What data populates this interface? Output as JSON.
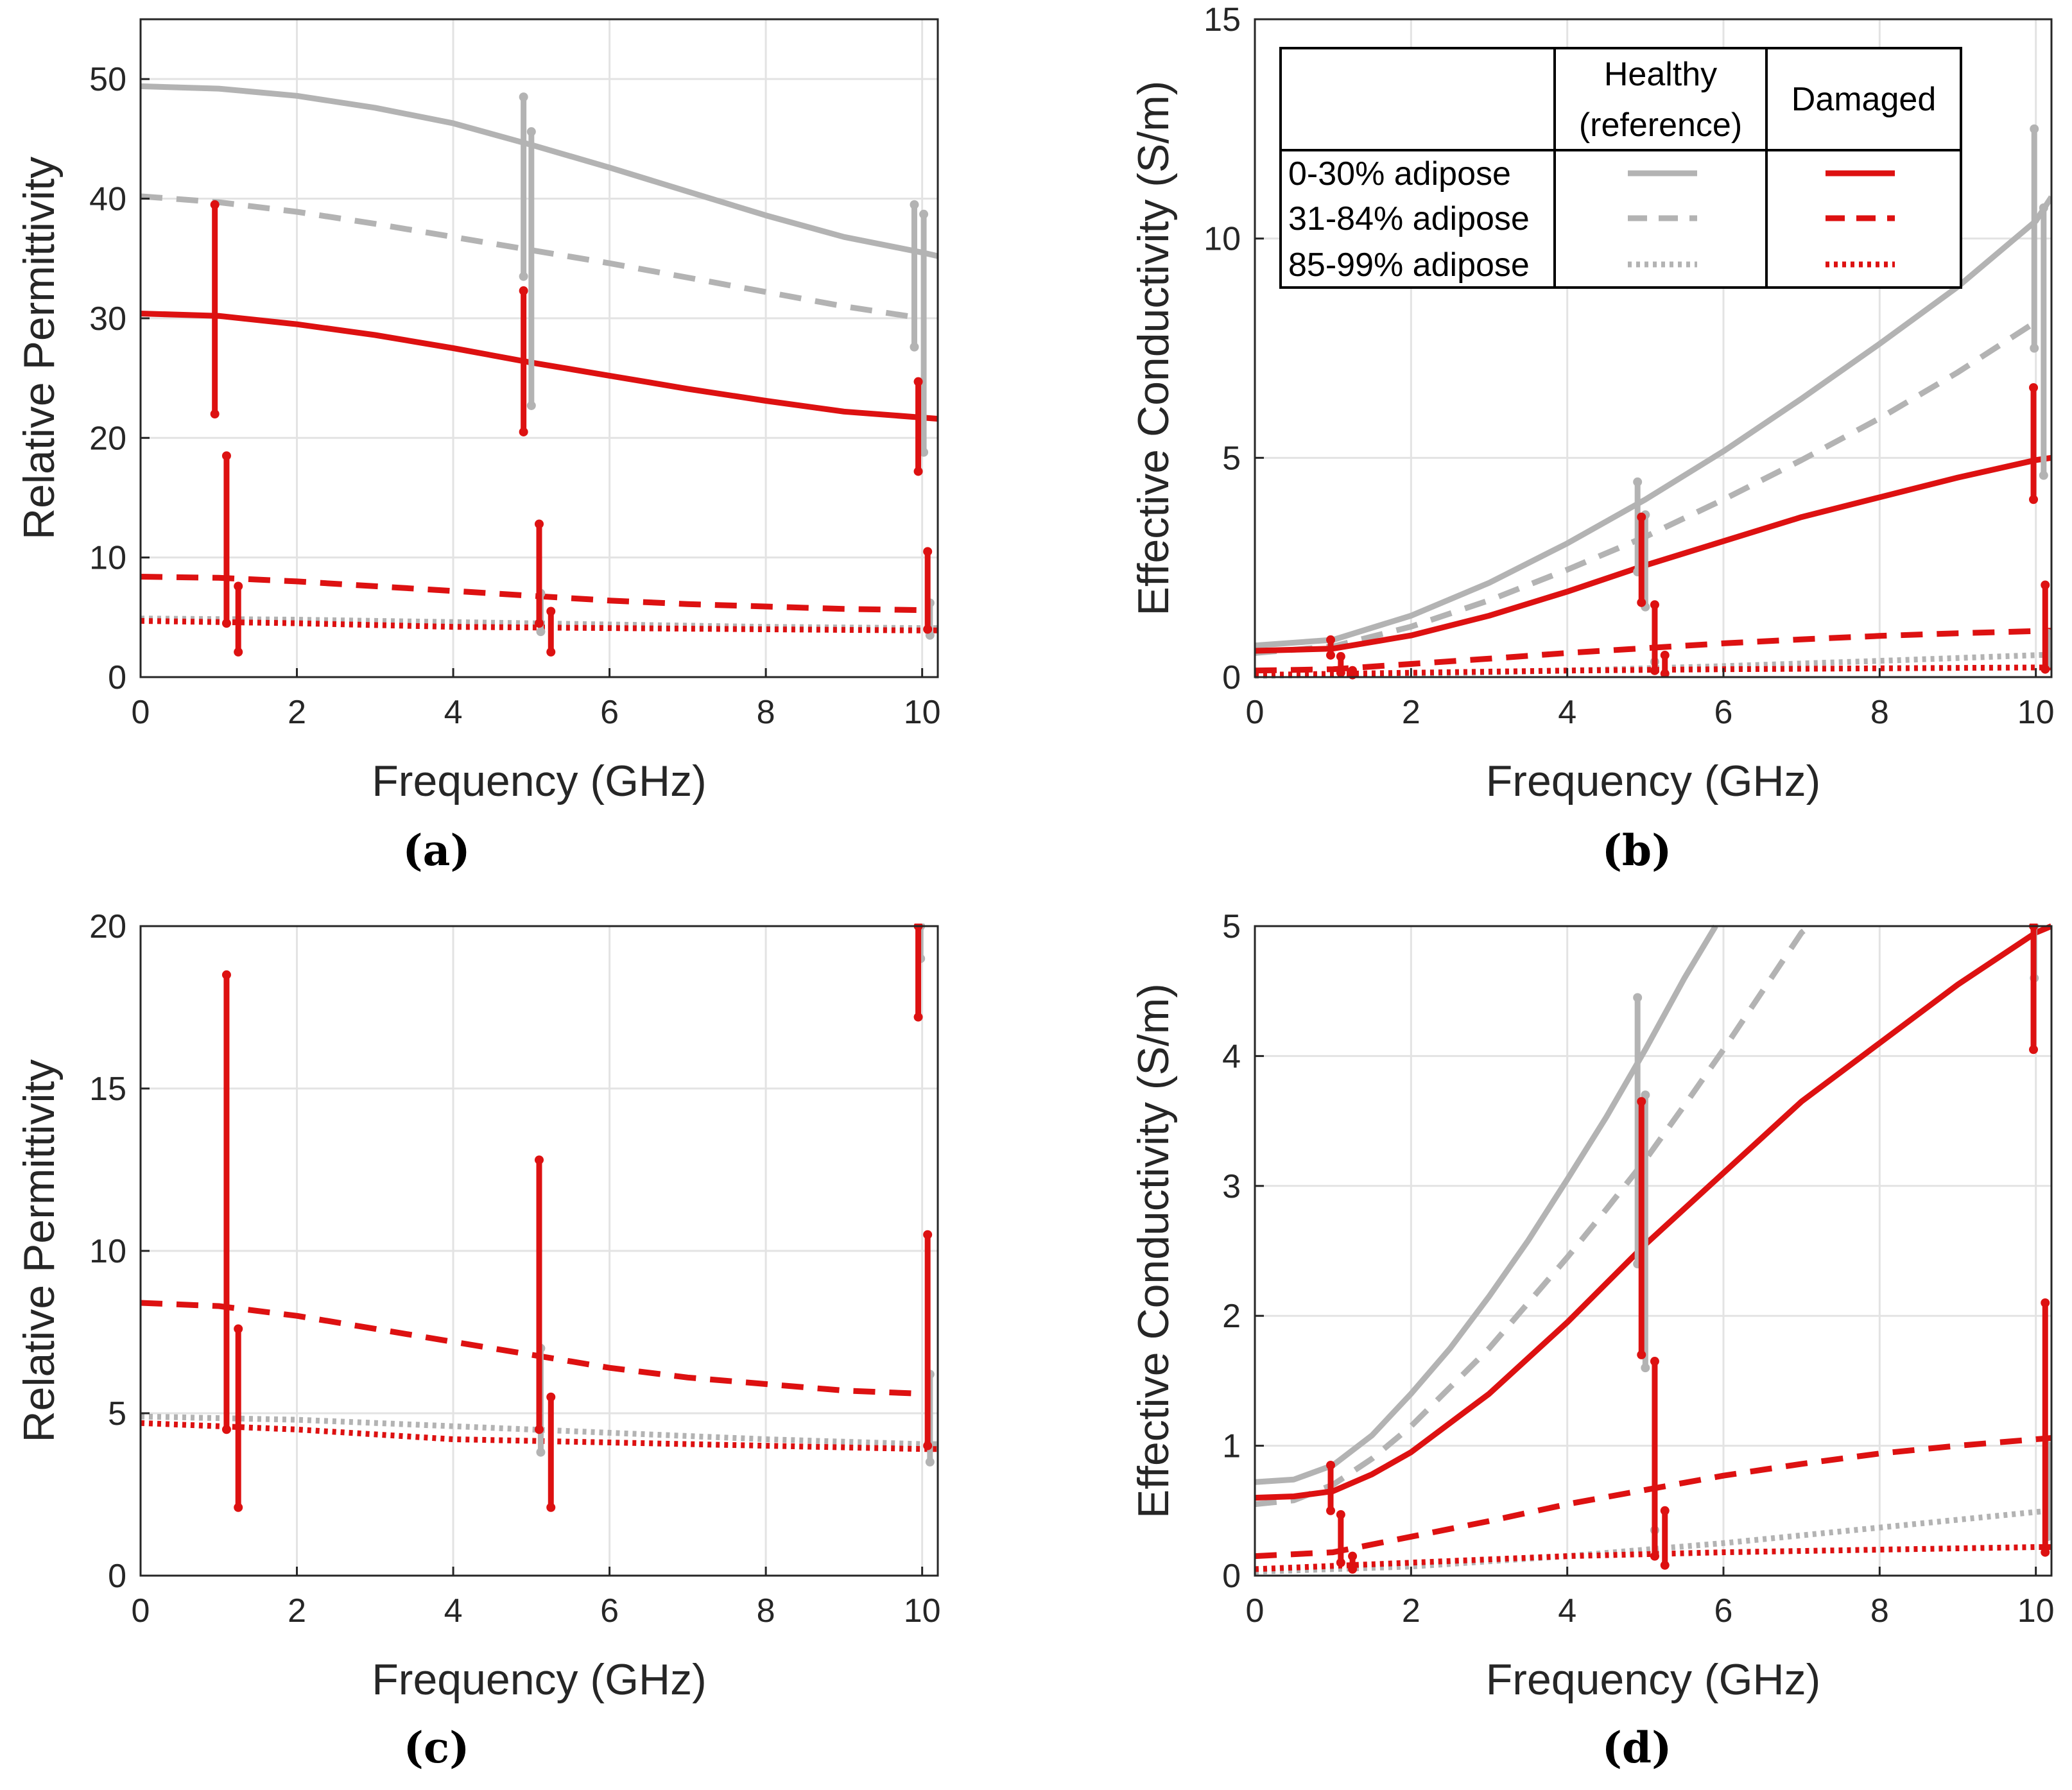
{
  "colors": {
    "healthy": "#b3b3b3",
    "damaged": "#dd1111",
    "grid": "#e3e3e3",
    "axis": "#262626"
  },
  "legend": {
    "col_healthy_line1": "Healthy",
    "col_healthy_line2": "(reference)",
    "col_damaged": "Damaged",
    "rows": [
      "0-30% adipose",
      "31-84% adipose",
      "85-99% adipose"
    ]
  },
  "chart_data": [
    {
      "panel": "a",
      "caption": "(a)",
      "type": "line",
      "xlabel": "Frequency (GHz)",
      "ylabel": "Relative Permittivity",
      "xlim": [
        0,
        10.2
      ],
      "ylim": [
        0,
        55
      ],
      "xticks": [
        0,
        2,
        4,
        6,
        8,
        10
      ],
      "yticks": [
        0,
        10,
        20,
        30,
        40,
        50
      ],
      "grid": true,
      "series": [
        {
          "name": "Healthy 0-30% adipose",
          "group": "healthy",
          "style": "solid",
          "x": [
            0,
            1,
            2,
            3,
            4,
            5,
            6,
            7,
            8,
            9,
            10,
            10.2
          ],
          "y": [
            49.4,
            49.2,
            48.6,
            47.6,
            46.3,
            44.5,
            42.6,
            40.6,
            38.6,
            36.8,
            35.5,
            35.2
          ]
        },
        {
          "name": "Healthy 31-84% adipose",
          "group": "healthy",
          "style": "dashed",
          "x": [
            0,
            1,
            2,
            3,
            4,
            5,
            6,
            7,
            8,
            9,
            10
          ],
          "y": [
            40.2,
            39.7,
            38.9,
            37.9,
            36.8,
            35.7,
            34.6,
            33.4,
            32.2,
            31.0,
            30.0
          ]
        },
        {
          "name": "Healthy 85-99% adipose",
          "group": "healthy",
          "style": "dotted",
          "x": [
            0,
            2,
            4,
            6,
            8,
            10,
            10.2
          ],
          "y": [
            4.9,
            4.8,
            4.6,
            4.4,
            4.2,
            4.1,
            4.1
          ]
        },
        {
          "name": "Damaged 0-30% adipose",
          "group": "damaged",
          "style": "solid",
          "x": [
            0,
            1,
            2,
            3,
            4,
            5,
            6,
            7,
            8,
            9,
            10,
            10.2
          ],
          "y": [
            30.4,
            30.2,
            29.5,
            28.6,
            27.5,
            26.3,
            25.2,
            24.1,
            23.1,
            22.2,
            21.7,
            21.6
          ]
        },
        {
          "name": "Damaged 31-84% adipose",
          "group": "damaged",
          "style": "dashed",
          "x": [
            0,
            1,
            2,
            3,
            4,
            5,
            6,
            7,
            8,
            9,
            10
          ],
          "y": [
            8.4,
            8.3,
            8.0,
            7.6,
            7.2,
            6.8,
            6.4,
            6.1,
            5.9,
            5.7,
            5.6
          ]
        },
        {
          "name": "Damaged 85-99% adipose",
          "group": "damaged",
          "style": "dotted",
          "x": [
            0,
            2,
            4,
            6,
            8,
            10,
            10.2
          ],
          "y": [
            4.7,
            4.5,
            4.2,
            4.1,
            4.0,
            3.9,
            3.9
          ]
        }
      ],
      "errorbars": [
        {
          "group": "healthy",
          "x": 4.9,
          "low": 33.5,
          "high": 48.5
        },
        {
          "group": "healthy",
          "x": 5.0,
          "low": 22.7,
          "high": 45.6
        },
        {
          "group": "healthy",
          "x": 9.9,
          "low": 27.6,
          "high": 39.5
        },
        {
          "group": "healthy",
          "x": 10.02,
          "low": 18.8,
          "high": 38.7
        },
        {
          "group": "healthy",
          "x": 5.12,
          "low": 3.8,
          "high": 7.0
        },
        {
          "group": "healthy",
          "x": 10.1,
          "low": 3.5,
          "high": 6.2
        },
        {
          "group": "damaged",
          "x": 0.95,
          "low": 22.0,
          "high": 39.5
        },
        {
          "group": "damaged",
          "x": 1.1,
          "low": 4.5,
          "high": 18.5
        },
        {
          "group": "damaged",
          "x": 1.25,
          "low": 2.1,
          "high": 7.6
        },
        {
          "group": "damaged",
          "x": 4.9,
          "low": 20.5,
          "high": 32.3
        },
        {
          "group": "damaged",
          "x": 5.1,
          "low": 4.5,
          "high": 12.8
        },
        {
          "group": "damaged",
          "x": 5.25,
          "low": 2.1,
          "high": 5.5
        },
        {
          "group": "damaged",
          "x": 9.95,
          "low": 17.2,
          "high": 24.7
        },
        {
          "group": "damaged",
          "x": 10.07,
          "low": 4.0,
          "high": 10.5
        }
      ]
    },
    {
      "panel": "b",
      "caption": "(b)",
      "type": "line",
      "xlabel": "Frequency (GHz)",
      "ylabel": "Effective Conductivity (S/m)",
      "xlim": [
        0,
        10.2
      ],
      "ylim": [
        0,
        15
      ],
      "xticks": [
        0,
        2,
        4,
        6,
        8,
        10
      ],
      "yticks": [
        0,
        5,
        10,
        15
      ],
      "grid": true,
      "series": [
        {
          "name": "Healthy 0-30% adipose",
          "group": "healthy",
          "style": "solid",
          "x": [
            0,
            1,
            2,
            3,
            4,
            5,
            6,
            7,
            8,
            9,
            10,
            10.2
          ],
          "y": [
            0.72,
            0.85,
            1.4,
            2.15,
            3.05,
            4.05,
            5.15,
            6.35,
            7.6,
            8.9,
            10.4,
            10.95
          ]
        },
        {
          "name": "Healthy 31-84% adipose",
          "group": "healthy",
          "style": "dashed",
          "x": [
            0,
            1,
            2,
            3,
            4,
            5,
            6,
            7,
            8,
            9,
            10
          ],
          "y": [
            0.55,
            0.7,
            1.15,
            1.75,
            2.45,
            3.2,
            4.05,
            4.95,
            5.9,
            6.95,
            8.1
          ]
        },
        {
          "name": "Healthy 85-99% adipose",
          "group": "healthy",
          "style": "dotted",
          "x": [
            0,
            2,
            4,
            6,
            8,
            10,
            10.2
          ],
          "y": [
            0.03,
            0.07,
            0.15,
            0.25,
            0.37,
            0.5,
            0.51
          ]
        },
        {
          "name": "Damaged 0-30% adipose",
          "group": "damaged",
          "style": "solid",
          "x": [
            0,
            1,
            2,
            3,
            4,
            5,
            6,
            7,
            8,
            9,
            10,
            10.2
          ],
          "y": [
            0.6,
            0.65,
            0.95,
            1.4,
            1.95,
            2.55,
            3.1,
            3.65,
            4.1,
            4.55,
            4.95,
            5.0
          ]
        },
        {
          "name": "Damaged 31-84% adipose",
          "group": "damaged",
          "style": "dashed",
          "x": [
            0,
            1,
            2,
            3,
            4,
            5,
            6,
            7,
            8,
            9,
            10,
            10.2
          ],
          "y": [
            0.15,
            0.18,
            0.3,
            0.42,
            0.55,
            0.66,
            0.77,
            0.86,
            0.94,
            1.0,
            1.05,
            1.06
          ]
        },
        {
          "name": "Damaged 85-99% adipose",
          "group": "damaged",
          "style": "dotted",
          "x": [
            0,
            2,
            4,
            6,
            8,
            10,
            10.2
          ],
          "y": [
            0.05,
            0.1,
            0.15,
            0.18,
            0.2,
            0.22,
            0.22
          ]
        }
      ],
      "errorbars": [
        {
          "group": "healthy",
          "x": 4.9,
          "low": 2.4,
          "high": 4.45
        },
        {
          "group": "healthy",
          "x": 5.0,
          "low": 1.6,
          "high": 3.7
        },
        {
          "group": "healthy",
          "x": 9.98,
          "low": 7.5,
          "high": 12.5
        },
        {
          "group": "healthy",
          "x": 10.1,
          "low": 4.6,
          "high": 10.7
        },
        {
          "group": "healthy",
          "x": 5.12,
          "low": 0.15,
          "high": 0.35
        },
        {
          "group": "healthy",
          "x": 10.15,
          "low": 0.3,
          "high": 1.0
        },
        {
          "group": "damaged",
          "x": 0.97,
          "low": 0.5,
          "high": 0.85
        },
        {
          "group": "damaged",
          "x": 1.1,
          "low": 0.1,
          "high": 0.47
        },
        {
          "group": "damaged",
          "x": 1.25,
          "low": 0.05,
          "high": 0.15
        },
        {
          "group": "damaged",
          "x": 4.95,
          "low": 1.7,
          "high": 3.65
        },
        {
          "group": "damaged",
          "x": 5.12,
          "low": 0.15,
          "high": 1.65
        },
        {
          "group": "damaged",
          "x": 5.25,
          "low": 0.08,
          "high": 0.5
        },
        {
          "group": "damaged",
          "x": 9.97,
          "low": 4.05,
          "high": 6.6
        },
        {
          "group": "damaged",
          "x": 10.12,
          "low": 0.18,
          "high": 2.1
        }
      ]
    },
    {
      "panel": "c",
      "caption": "(c)",
      "type": "line",
      "xlabel": "Frequency (GHz)",
      "ylabel": "Relative Permittivity",
      "xlim": [
        0,
        10.2
      ],
      "ylim": [
        0,
        20
      ],
      "xticks": [
        0,
        2,
        4,
        6,
        8,
        10
      ],
      "yticks": [
        0,
        5,
        10,
        15,
        20
      ],
      "grid": true,
      "series": [
        {
          "name": "Healthy 85-99% adipose",
          "group": "healthy",
          "style": "dotted",
          "x": [
            0,
            2,
            4,
            6,
            8,
            10,
            10.2
          ],
          "y": [
            4.9,
            4.8,
            4.6,
            4.4,
            4.2,
            4.05,
            4.05
          ]
        },
        {
          "name": "Damaged 31-84% adipose",
          "group": "damaged",
          "style": "dashed",
          "x": [
            0,
            1,
            2,
            3,
            4,
            5,
            6,
            7,
            8,
            9,
            10
          ],
          "y": [
            8.4,
            8.3,
            8.0,
            7.6,
            7.2,
            6.8,
            6.4,
            6.1,
            5.9,
            5.7,
            5.6
          ]
        },
        {
          "name": "Damaged 85-99% adipose",
          "group": "damaged",
          "style": "dotted",
          "x": [
            0,
            2,
            4,
            6,
            8,
            10,
            10.2
          ],
          "y": [
            4.7,
            4.5,
            4.2,
            4.1,
            4.0,
            3.9,
            3.9
          ]
        }
      ],
      "errorbars": [
        {
          "group": "healthy",
          "x": 9.98,
          "low": 19.0,
          "high": 20.0
        },
        {
          "group": "healthy",
          "x": 5.12,
          "low": 3.8,
          "high": 7.0
        },
        {
          "group": "healthy",
          "x": 10.1,
          "low": 3.5,
          "high": 6.2
        },
        {
          "group": "damaged",
          "x": 9.95,
          "low": 17.2,
          "high": 20.0
        },
        {
          "group": "damaged",
          "x": 1.1,
          "low": 4.5,
          "high": 18.5
        },
        {
          "group": "damaged",
          "x": 1.25,
          "low": 2.1,
          "high": 7.6
        },
        {
          "group": "damaged",
          "x": 5.1,
          "low": 4.5,
          "high": 12.8
        },
        {
          "group": "damaged",
          "x": 5.25,
          "low": 2.1,
          "high": 5.5
        },
        {
          "group": "damaged",
          "x": 10.07,
          "low": 4.0,
          "high": 10.5
        }
      ]
    },
    {
      "panel": "d",
      "caption": "(d)",
      "type": "line",
      "xlabel": "Frequency (GHz)",
      "ylabel": "Effective Conductivity (S/m)",
      "xlim": [
        0,
        10.2
      ],
      "ylim": [
        0,
        5
      ],
      "xticks": [
        0,
        2,
        4,
        6,
        8,
        10
      ],
      "yticks": [
        0,
        1,
        2,
        3,
        4,
        5
      ],
      "grid": true,
      "series": [
        {
          "name": "Healthy 0-30% adipose",
          "group": "healthy",
          "style": "solid",
          "x": [
            0,
            0.5,
            1,
            1.5,
            2,
            2.5,
            3,
            3.5,
            4,
            4.5,
            5,
            5.5,
            5.9
          ],
          "y": [
            0.72,
            0.74,
            0.85,
            1.08,
            1.4,
            1.75,
            2.15,
            2.58,
            3.05,
            3.53,
            4.05,
            4.6,
            5.0
          ]
        },
        {
          "name": "Healthy 31-84% adipose",
          "group": "healthy",
          "style": "dashed",
          "x": [
            0,
            0.5,
            1,
            1.5,
            2,
            2.5,
            3,
            3.5,
            4,
            4.5,
            5,
            5.5,
            6,
            6.5,
            7,
            7.1
          ],
          "y": [
            0.55,
            0.58,
            0.7,
            0.9,
            1.15,
            1.45,
            1.75,
            2.1,
            2.45,
            2.82,
            3.2,
            3.62,
            4.05,
            4.5,
            4.95,
            5.0
          ]
        },
        {
          "name": "Healthy 85-99% adipose",
          "group": "healthy",
          "style": "dotted",
          "x": [
            0,
            2,
            4,
            6,
            8,
            10,
            10.2
          ],
          "y": [
            0.03,
            0.07,
            0.15,
            0.25,
            0.37,
            0.49,
            0.5
          ]
        },
        {
          "name": "Damaged 0-30% adipose",
          "group": "damaged",
          "style": "solid",
          "x": [
            0,
            0.5,
            1,
            1.5,
            2,
            3,
            4,
            5,
            6,
            7,
            8,
            9,
            10,
            10.2
          ],
          "y": [
            0.6,
            0.61,
            0.65,
            0.78,
            0.95,
            1.4,
            1.95,
            2.55,
            3.1,
            3.65,
            4.1,
            4.55,
            4.95,
            5.0
          ]
        },
        {
          "name": "Damaged 31-84% adipose",
          "group": "damaged",
          "style": "dashed",
          "x": [
            0,
            1,
            2,
            3,
            4,
            5,
            6,
            7,
            8,
            9,
            10,
            10.2
          ],
          "y": [
            0.15,
            0.18,
            0.3,
            0.42,
            0.55,
            0.66,
            0.77,
            0.86,
            0.94,
            1.0,
            1.05,
            1.06
          ]
        },
        {
          "name": "Damaged 85-99% adipose",
          "group": "damaged",
          "style": "dotted",
          "x": [
            0,
            2,
            4,
            6,
            8,
            10,
            10.2
          ],
          "y": [
            0.05,
            0.1,
            0.15,
            0.18,
            0.2,
            0.22,
            0.22
          ]
        }
      ],
      "errorbars": [
        {
          "group": "healthy",
          "x": 4.9,
          "low": 2.4,
          "high": 4.45
        },
        {
          "group": "healthy",
          "x": 5.0,
          "low": 1.6,
          "high": 3.7
        },
        {
          "group": "healthy",
          "x": 9.98,
          "low": 4.6,
          "high": 5.0
        },
        {
          "group": "healthy",
          "x": 5.12,
          "low": 0.15,
          "high": 0.35
        },
        {
          "group": "healthy",
          "x": 10.15,
          "low": 0.3,
          "high": 1.0
        },
        {
          "group": "damaged",
          "x": 0.97,
          "low": 0.5,
          "high": 0.85
        },
        {
          "group": "damaged",
          "x": 1.1,
          "low": 0.1,
          "high": 0.47
        },
        {
          "group": "damaged",
          "x": 1.25,
          "low": 0.05,
          "high": 0.15
        },
        {
          "group": "damaged",
          "x": 4.95,
          "low": 1.7,
          "high": 3.65
        },
        {
          "group": "damaged",
          "x": 5.12,
          "low": 0.15,
          "high": 1.65
        },
        {
          "group": "damaged",
          "x": 5.25,
          "low": 0.08,
          "high": 0.5
        },
        {
          "group": "damaged",
          "x": 9.97,
          "low": 4.05,
          "high": 5.0
        },
        {
          "group": "damaged",
          "x": 10.12,
          "low": 0.18,
          "high": 2.1
        }
      ]
    }
  ]
}
